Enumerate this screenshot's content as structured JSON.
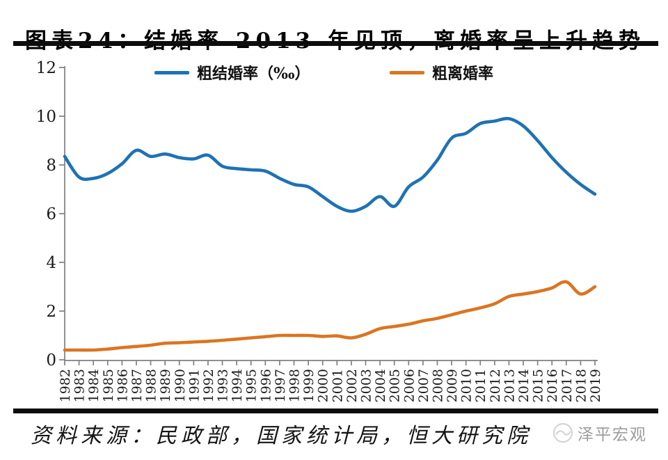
{
  "title": "图表24：结婚率 2013 年见顶，离婚率呈上升趋势",
  "chart_data": {
    "type": "line",
    "x": [
      1982,
      1983,
      1984,
      1985,
      1986,
      1987,
      1988,
      1989,
      1990,
      1991,
      1992,
      1993,
      1994,
      1995,
      1996,
      1997,
      1998,
      1999,
      2000,
      2001,
      2002,
      2003,
      2004,
      2005,
      2006,
      2007,
      2008,
      2009,
      2010,
      2011,
      2012,
      2013,
      2014,
      2015,
      2016,
      2017,
      2018,
      2019
    ],
    "series": [
      {
        "name": "粗结婚率（‰）",
        "color": "#1E72B4",
        "values": [
          8.35,
          7.5,
          7.45,
          7.65,
          8.05,
          8.6,
          8.35,
          8.45,
          8.3,
          8.25,
          8.4,
          7.95,
          7.85,
          7.8,
          7.75,
          7.45,
          7.2,
          7.1,
          6.7,
          6.3,
          6.1,
          6.3,
          6.7,
          6.3,
          7.1,
          7.5,
          8.2,
          9.1,
          9.3,
          9.7,
          9.8,
          9.9,
          9.6,
          9.0,
          8.3,
          7.7,
          7.2,
          6.8
        ]
      },
      {
        "name": "粗离婚率",
        "color": "#DB7521",
        "values": [
          0.4,
          0.4,
          0.4,
          0.44,
          0.5,
          0.55,
          0.6,
          0.68,
          0.7,
          0.73,
          0.76,
          0.8,
          0.85,
          0.9,
          0.95,
          1.0,
          1.0,
          1.0,
          0.96,
          0.98,
          0.9,
          1.05,
          1.28,
          1.37,
          1.46,
          1.6,
          1.7,
          1.85,
          2.0,
          2.13,
          2.3,
          2.6,
          2.7,
          2.8,
          2.95,
          3.2,
          2.7,
          3.0
        ]
      }
    ],
    "ylim": [
      0,
      12
    ],
    "yticks": [
      0,
      2,
      4,
      6,
      8,
      10,
      12
    ],
    "xlabel": "",
    "ylabel": "",
    "grid": false,
    "legend_position": "top"
  },
  "footer": {
    "source": "资料来源：民政部，国家统计局，恒大研究院",
    "watermark": "泽平宏观"
  },
  "colors": {
    "axis": "#7f7f7f",
    "tick_text": "#1a1a1a",
    "rule": "#0d0d0d",
    "watermark": "#8f8f8f"
  }
}
